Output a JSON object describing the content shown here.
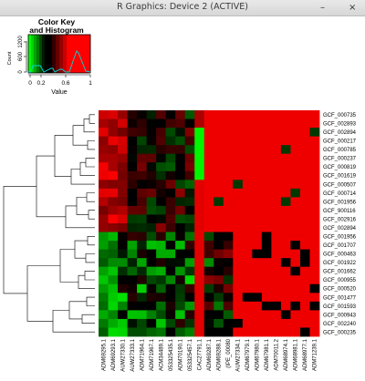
{
  "window": {
    "title": "R Graphics: Device 2 (ACTIVE)",
    "minimize_glyph": "–",
    "close_glyph": "×",
    "minimize_icon": "minimize-icon",
    "close_icon": "close-icon"
  },
  "color_key": {
    "title_line1": "Color Key",
    "title_line2": "and Histogram",
    "y_label": "Count",
    "y_ticks": [
      "0",
      "600",
      "1200"
    ],
    "x_label": "Value",
    "x_ticks": [
      "0",
      "0.2",
      "0.6",
      "1"
    ],
    "gradient": [
      "#00ff00",
      "#000000",
      "#ff0000"
    ]
  },
  "heatmap": {
    "row_labels": [
      "GCF_000735",
      "GCF_002893",
      "GCF_002894",
      "GCF_000217",
      "GCF_000785",
      "GCF_000237",
      "GCF_000819",
      "GCF_001619",
      "GCF_000507",
      "GCF_000714",
      "GCF_001956",
      "GCF_900116",
      "GCF_002916",
      "GCF_002894",
      "GCF_001956",
      "GCF_001707",
      "GCF_000463",
      "GCF_001922",
      "GCF_001662",
      "GCF_000955",
      "GCF_000520",
      "GCF_001477",
      "GCF_001593",
      "GCF_000943",
      "GCF_002240",
      "GCF_000235"
    ],
    "col_labels": [
      "ADM69295.1",
      "ADM69293.1",
      "AUW27330.1",
      "AUW27333.1",
      "ADM71964.1",
      "ADM71967.1",
      "ACM34489.1",
      "053325435.1",
      "ADM70190.1",
      "053325457.1",
      "CAC27791.1",
      "ADM69287.1",
      "ADM69288.1",
      "(IPE_00080",
      "AUW27334.1",
      "ADM67979.1",
      "ADM67980.1",
      "ADM67981.1",
      "ADM70011.2",
      "ADM68974.1",
      "ADM68981.1",
      "ADM68977.1",
      "ADM71239.1"
    ]
  }
}
